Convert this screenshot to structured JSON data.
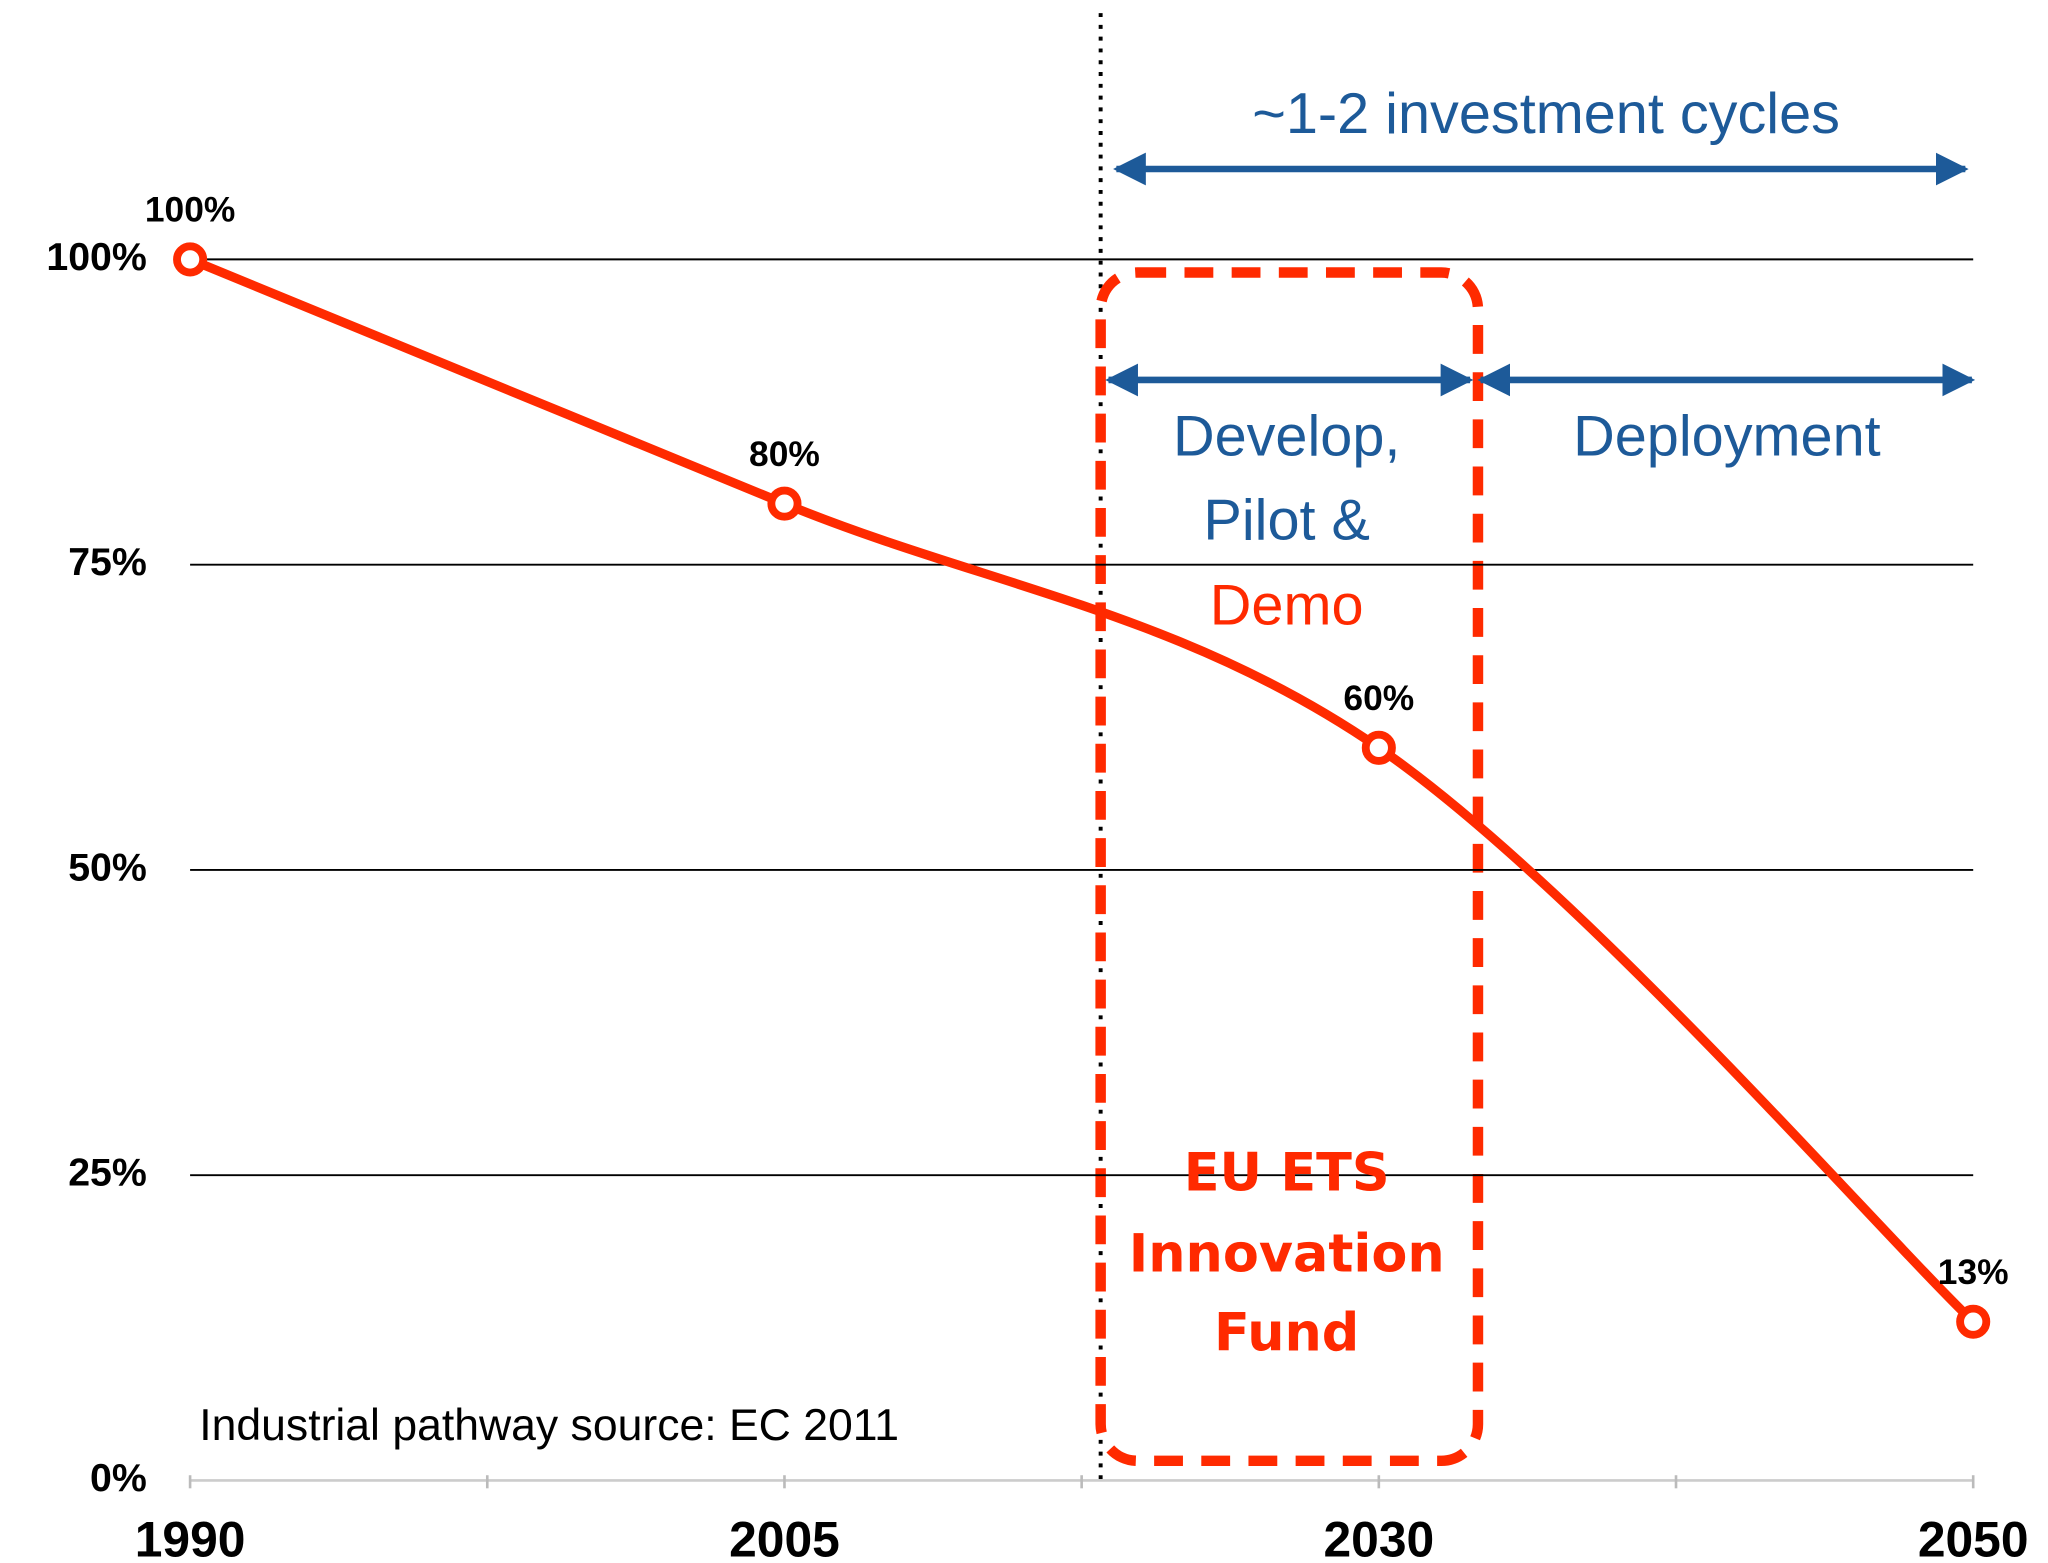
{
  "chart_data": {
    "type": "line",
    "categories": [
      "1990",
      "2005",
      "2030",
      "2050"
    ],
    "values": [
      100,
      80,
      60,
      13
    ],
    "value_labels": [
      "100%",
      "80%",
      "60%",
      "13%"
    ],
    "color": "#ff2a00",
    "ylim": [
      0,
      100
    ],
    "yticks": [
      {
        "value": 0,
        "label": "0%"
      },
      {
        "value": 25,
        "label": "25%"
      },
      {
        "value": 50,
        "label": "50%"
      },
      {
        "value": 75,
        "label": "75%"
      },
      {
        "value": 100,
        "label": "100%"
      }
    ],
    "grid": true,
    "annotations": [
      "~1-2 investment cycles",
      "Develop,",
      "Pilot &",
      "Demo",
      "Deployment",
      "EU ETS",
      "Innovation",
      "Fund",
      "Industrial pathway source: EC 2011"
    ]
  }
}
